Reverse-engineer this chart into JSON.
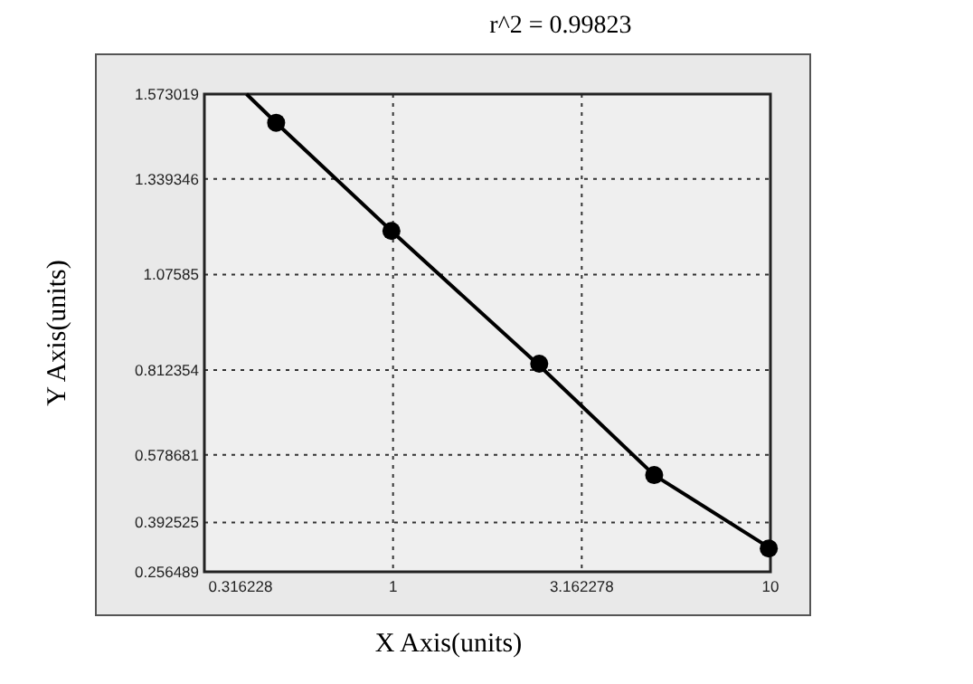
{
  "chart_data": {
    "type": "scatter",
    "title": "r^2 = 0.99823",
    "xlabel": "X Axis(units)",
    "ylabel": "Y Axis(units)",
    "log": "x",
    "grid": true,
    "marker": "circle",
    "xlim": [
      0.316228,
      10
    ],
    "xticks": [
      0.316228,
      1,
      3.162278,
      10
    ],
    "ylim": [
      0.256489,
      1.573019
    ],
    "yticks": [
      0.256489,
      0.392525,
      0.578681,
      0.812354,
      1.07585,
      1.339346,
      1.573019
    ],
    "series": [
      {
        "color": "#000000",
        "x": [
          0.49,
          0.99,
          2.44,
          4.92,
          9.9
        ],
        "values": [
          1.494,
          1.196,
          0.83,
          0.523,
          0.321
        ]
      },
      {
        "type": "line",
        "color": "#000000",
        "marker": "none",
        "x": [
          0.409,
          0.49,
          0.99,
          2.44,
          4.92,
          10
        ],
        "values": [
          1.573,
          1.494,
          1.196,
          0.825,
          0.523,
          0.321
        ]
      }
    ]
  }
}
